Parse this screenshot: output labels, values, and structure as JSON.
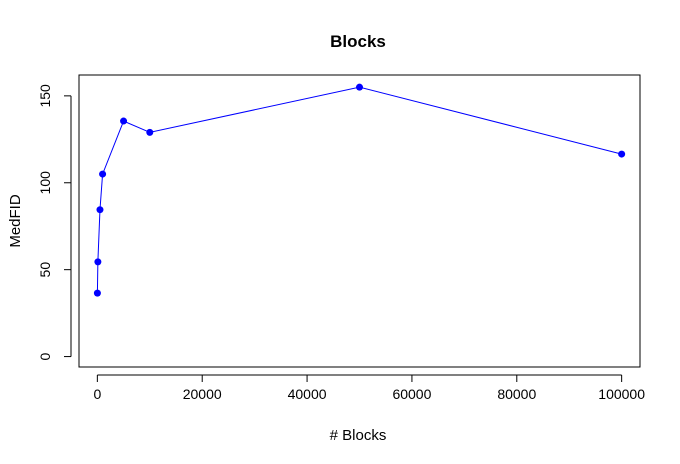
{
  "chart_data": {
    "type": "line",
    "title": "Blocks",
    "xlabel": "# Blocks",
    "ylabel": "MedFID",
    "x": [
      10,
      100,
      500,
      1000,
      5000,
      10000,
      50000,
      100000
    ],
    "series": [
      {
        "values": [
          36.5,
          54.5,
          84.5,
          105,
          135.5,
          129,
          155,
          116.5
        ]
      }
    ],
    "xlim": [
      -3500,
      103500
    ],
    "ylim": [
      -6,
      162
    ],
    "xticks": [
      0,
      20000,
      40000,
      60000,
      80000,
      100000
    ],
    "yticks": [
      0,
      50,
      100,
      150
    ],
    "xtick_labels": [
      "0",
      "20000",
      "40000",
      "60000",
      "80000",
      "100000"
    ],
    "ytick_labels": [
      "0",
      "50",
      "100",
      "150"
    ],
    "line_color": "#0000ff",
    "marker_color": "#0000ff",
    "grid": false,
    "legend": "none"
  }
}
